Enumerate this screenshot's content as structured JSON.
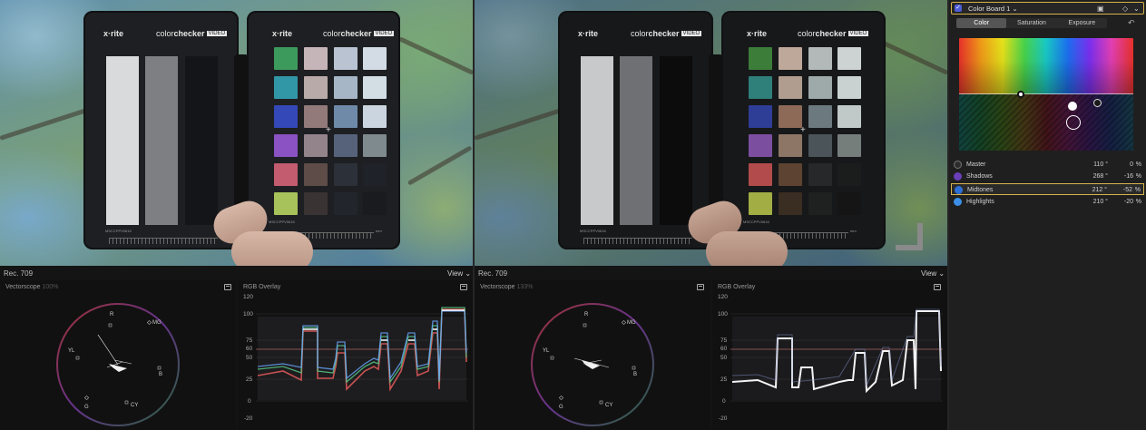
{
  "viewers": [
    {
      "card": {
        "brand_logo": "x·rite",
        "brand_prefix": "color",
        "brand_bold": "checker",
        "brand_tag": "VIDEO",
        "serial": "MSCCPPV0616",
        "serial2": "MSCCPPV0616",
        "mm": "mm"
      }
    },
    {
      "card": {
        "brand_logo": "x·rite",
        "brand_prefix": "color",
        "brand_bold": "checker",
        "brand_tag": "VIDEO",
        "serial": "MSCCPPV0616",
        "serial2": "MSCCPPV0616",
        "mm": "mm"
      }
    }
  ],
  "scopes": [
    {
      "format": "Rec. 709",
      "view_label": "View ⌄",
      "vectorscope": {
        "title": "Vectorscope",
        "zoom": "100%"
      },
      "rgb": {
        "title": "RGB Overlay"
      }
    },
    {
      "format": "Rec. 709",
      "view_label": "View ⌄",
      "vectorscope": {
        "title": "Vectorscope",
        "zoom": "133%"
      },
      "rgb": {
        "title": "RGB Overlay"
      }
    }
  ],
  "vector_labels": {
    "r": "R",
    "mg": "MG",
    "b": "B",
    "cy": "CY",
    "g": "G",
    "yl": "YL"
  },
  "rgb_axis": [
    "120",
    "100",
    "75",
    "60",
    "50",
    "25",
    "0",
    "-20"
  ],
  "inspector": {
    "board_name": "Color Board 1 ⌄",
    "tabs": [
      "Color",
      "Saturation",
      "Exposure"
    ],
    "active_tab": "Color",
    "controls": [
      {
        "label": "Master",
        "value1": "110 °",
        "value2": "0",
        "unit": "%",
        "icon_color": "#2c2c2c"
      },
      {
        "label": "Shadows",
        "value1": "268 °",
        "value2": "-16",
        "unit": "%",
        "icon_color": "#6a3fb8"
      },
      {
        "label": "Midtones",
        "value1": "212 °",
        "value2": "-52",
        "unit": "%",
        "icon_color": "#2f6fd8"
      },
      {
        "label": "Highlights",
        "value1": "210 °",
        "value2": "-20",
        "unit": "%",
        "icon_color": "#3c8fe6"
      }
    ],
    "selected_control": "Midtones",
    "accent_color": "#d6b44a"
  }
}
